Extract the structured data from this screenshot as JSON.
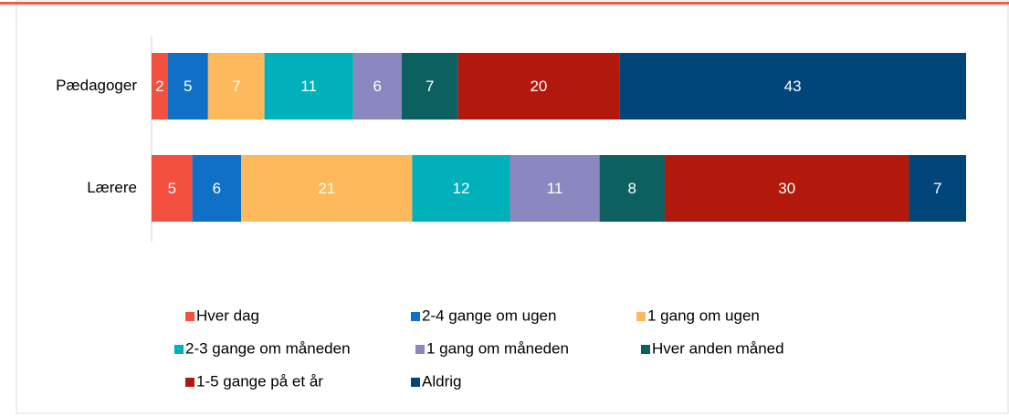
{
  "chart_data": {
    "type": "bar",
    "orientation": "horizontal",
    "stacked": true,
    "categories": [
      "Pædagoger",
      "Lærere"
    ],
    "series": [
      {
        "name": "Hver dag",
        "color": "#f4503f",
        "values": [
          2,
          5
        ]
      },
      {
        "name": "2-4 gange om ugen",
        "color": "#1070c8",
        "values": [
          5,
          6
        ]
      },
      {
        "name": "1 gang om ugen",
        "color": "#fdb95b",
        "values": [
          7,
          21
        ]
      },
      {
        "name": "2-3 gange om måneden",
        "color": "#00b0bb",
        "values": [
          11,
          12
        ]
      },
      {
        "name": "1 gang om måneden",
        "color": "#8b87c0",
        "values": [
          6,
          11
        ]
      },
      {
        "name": "Hver anden måned",
        "color": "#0d6060",
        "values": [
          7,
          8
        ]
      },
      {
        "name": "1-5 gange på et år",
        "color": "#b3180c",
        "values": [
          20,
          30
        ]
      },
      {
        "name": "Aldrig",
        "color": "#00467a",
        "values": [
          43,
          7
        ]
      }
    ],
    "legend": "bottom"
  }
}
